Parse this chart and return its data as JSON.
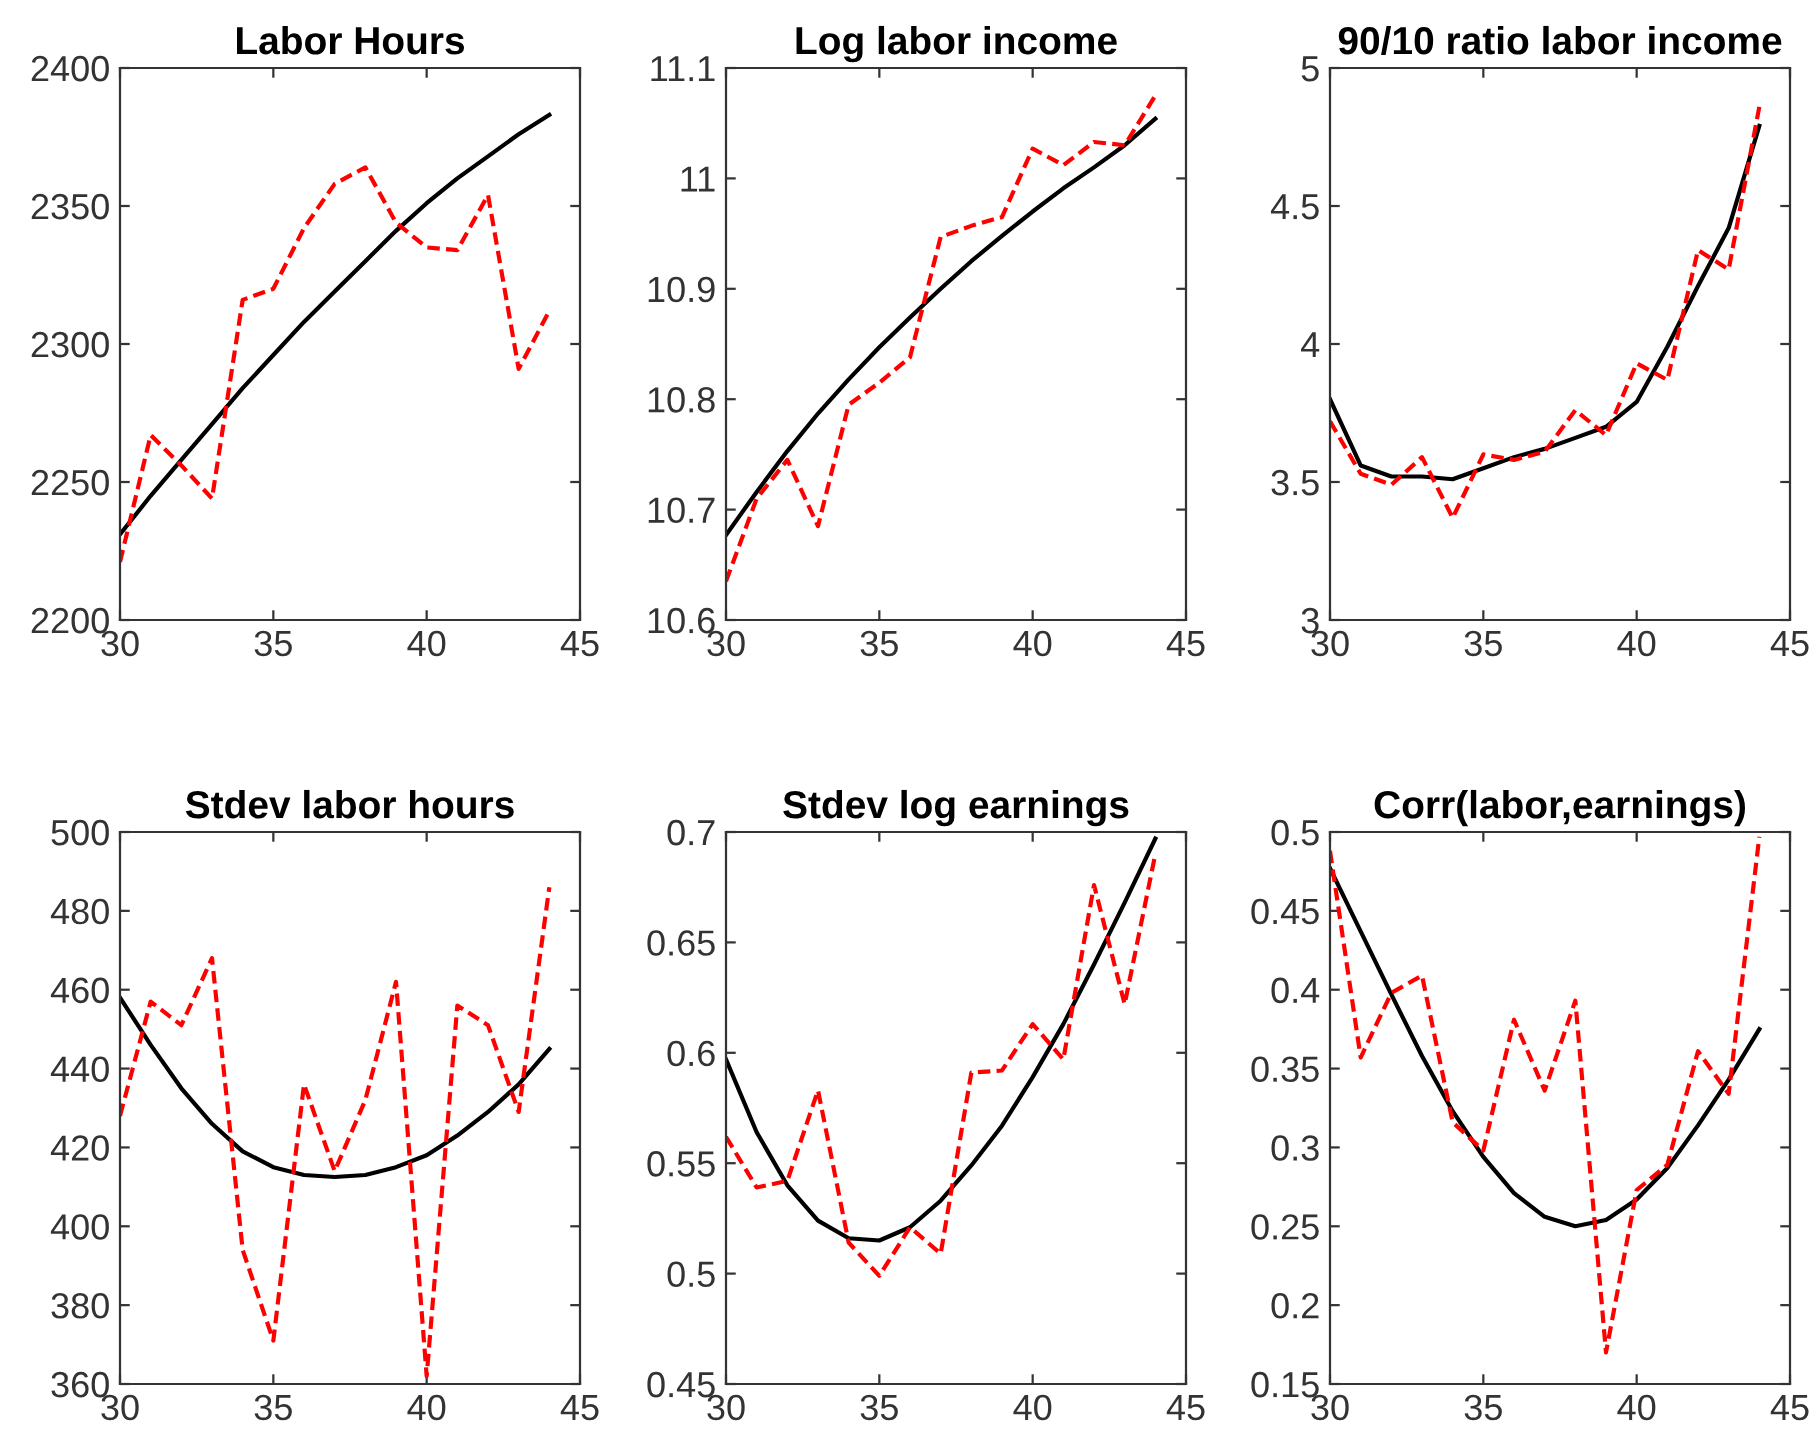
{
  "chart_data": [
    {
      "type": "line",
      "title": "Labor Hours",
      "x": [
        30,
        31,
        32,
        33,
        34,
        35,
        36,
        37,
        38,
        39,
        40,
        41,
        42,
        43,
        44
      ],
      "xlim": [
        30,
        45
      ],
      "xticks": [
        30,
        35,
        40,
        45
      ],
      "ylim": [
        2200,
        2400
      ],
      "yticks": [
        2200,
        2250,
        2300,
        2350,
        2400
      ],
      "grid": false,
      "series": [
        {
          "color": "#000000",
          "line_style": "solid",
          "values": [
            2231,
            2245,
            2258,
            2271,
            2284,
            2296,
            2308,
            2319,
            2330,
            2341,
            2351,
            2360,
            2368,
            2376,
            2383
          ]
        },
        {
          "color": "#ff0000",
          "line_style": "dashed",
          "values": [
            2221,
            2267,
            2256,
            2244,
            2316,
            2320,
            2342,
            2358,
            2364,
            2344,
            2335,
            2334,
            2354,
            2291,
            2312
          ]
        }
      ]
    },
    {
      "type": "line",
      "title": "Log labor income",
      "x": [
        30,
        31,
        32,
        33,
        34,
        35,
        36,
        37,
        38,
        39,
        40,
        41,
        42,
        43,
        44
      ],
      "xlim": [
        30,
        45
      ],
      "xticks": [
        30,
        35,
        40,
        45
      ],
      "ylim": [
        10.6,
        11.1
      ],
      "yticks": [
        10.6,
        10.7,
        10.8,
        10.9,
        11,
        11.1
      ],
      "grid": false,
      "series": [
        {
          "color": "#000000",
          "line_style": "solid",
          "values": [
            10.677,
            10.716,
            10.753,
            10.787,
            10.818,
            10.847,
            10.874,
            10.9,
            10.925,
            10.948,
            10.97,
            10.991,
            11.01,
            11.03,
            11.054
          ]
        },
        {
          "color": "#ff0000",
          "line_style": "dashed",
          "values": [
            10.635,
            10.71,
            10.745,
            10.685,
            10.795,
            10.815,
            10.838,
            10.947,
            10.957,
            10.965,
            11.027,
            11.012,
            11.033,
            11.03,
            11.075
          ]
        }
      ]
    },
    {
      "type": "line",
      "title": "90/10 ratio labor income",
      "x": [
        30,
        31,
        32,
        33,
        34,
        35,
        36,
        37,
        38,
        39,
        40,
        41,
        42,
        43,
        44
      ],
      "xlim": [
        30,
        45
      ],
      "xticks": [
        30,
        35,
        40,
        45
      ],
      "ylim": [
        3,
        5
      ],
      "yticks": [
        3,
        3.5,
        4,
        4.5,
        5
      ],
      "grid": false,
      "series": [
        {
          "color": "#000000",
          "line_style": "solid",
          "values": [
            3.8,
            3.56,
            3.52,
            3.52,
            3.51,
            3.55,
            3.59,
            3.62,
            3.66,
            3.7,
            3.79,
            3.99,
            4.21,
            4.42,
            4.79
          ]
        },
        {
          "color": "#ff0000",
          "line_style": "dashed",
          "values": [
            3.72,
            3.53,
            3.49,
            3.59,
            3.37,
            3.6,
            3.58,
            3.61,
            3.76,
            3.67,
            3.93,
            3.87,
            4.34,
            4.27,
            4.86
          ]
        }
      ]
    },
    {
      "type": "line",
      "title": "Stdev labor hours",
      "x": [
        30,
        31,
        32,
        33,
        34,
        35,
        36,
        37,
        38,
        39,
        40,
        41,
        42,
        43,
        44
      ],
      "xlim": [
        30,
        45
      ],
      "xticks": [
        30,
        35,
        40,
        45
      ],
      "ylim": [
        360,
        500
      ],
      "yticks": [
        360,
        380,
        400,
        420,
        440,
        460,
        480,
        500
      ],
      "grid": false,
      "series": [
        {
          "color": "#000000",
          "line_style": "solid",
          "values": [
            458,
            446,
            435,
            426,
            419,
            415,
            413,
            412.5,
            413,
            415,
            418,
            423,
            429,
            436,
            445
          ]
        },
        {
          "color": "#ff0000",
          "line_style": "dashed",
          "values": [
            428,
            457,
            451,
            468,
            394,
            371,
            436,
            414,
            432,
            462,
            362,
            456,
            451,
            429,
            486
          ]
        }
      ]
    },
    {
      "type": "line",
      "title": "Stdev log earnings",
      "x": [
        30,
        31,
        32,
        33,
        34,
        35,
        36,
        37,
        38,
        39,
        40,
        41,
        42,
        43,
        44
      ],
      "xlim": [
        30,
        45
      ],
      "xticks": [
        30,
        35,
        40,
        45
      ],
      "ylim": [
        0.45,
        0.7
      ],
      "yticks": [
        0.45,
        0.5,
        0.55,
        0.6,
        0.65,
        0.7
      ],
      "grid": false,
      "series": [
        {
          "color": "#000000",
          "line_style": "solid",
          "values": [
            0.597,
            0.564,
            0.54,
            0.524,
            0.516,
            0.515,
            0.521,
            0.533,
            0.549,
            0.567,
            0.589,
            0.613,
            0.64,
            0.668,
            0.697
          ]
        },
        {
          "color": "#ff0000",
          "line_style": "dashed",
          "values": [
            0.562,
            0.539,
            0.542,
            0.583,
            0.514,
            0.499,
            0.521,
            0.509,
            0.591,
            0.592,
            0.613,
            0.597,
            0.676,
            0.622,
            0.69
          ]
        }
      ]
    },
    {
      "type": "line",
      "title": "Corr(labor,earnings)",
      "x": [
        30,
        31,
        32,
        33,
        34,
        35,
        36,
        37,
        38,
        39,
        40,
        41,
        42,
        43,
        44
      ],
      "xlim": [
        30,
        45
      ],
      "xticks": [
        30,
        35,
        40,
        45
      ],
      "ylim": [
        0.15,
        0.5
      ],
      "yticks": [
        0.15,
        0.2,
        0.25,
        0.3,
        0.35,
        0.4,
        0.45,
        0.5
      ],
      "grid": false,
      "series": [
        {
          "color": "#000000",
          "line_style": "solid",
          "values": [
            0.477,
            0.437,
            0.397,
            0.358,
            0.323,
            0.294,
            0.271,
            0.256,
            0.25,
            0.254,
            0.267,
            0.287,
            0.314,
            0.343,
            0.375
          ]
        },
        {
          "color": "#ff0000",
          "line_style": "dashed",
          "values": [
            0.488,
            0.357,
            0.398,
            0.409,
            0.316,
            0.298,
            0.381,
            0.336,
            0.393,
            0.17,
            0.273,
            0.289,
            0.361,
            0.334,
            0.497
          ]
        }
      ]
    }
  ]
}
